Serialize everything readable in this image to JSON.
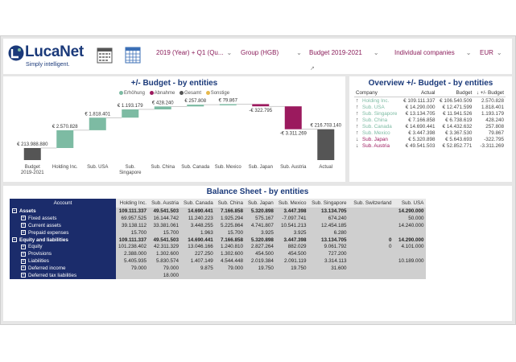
{
  "brand": {
    "name": "LucaNet",
    "tagline": "Simply intelligent."
  },
  "header": {
    "period": "2019 (Year) + Q1 (Qu...",
    "scenario": "Group (HGB)",
    "plan": "Budget 2019-2021",
    "companies": "Individual companies",
    "currency": "EUR"
  },
  "waterfall": {
    "title": "+/- Budget - by entities",
    "legend": [
      {
        "label": "Erhöhung",
        "color": "#7dbba3"
      },
      {
        "label": "Abnahme",
        "color": "#9b1a5e"
      },
      {
        "label": "Gesamt",
        "color": "#555555"
      },
      {
        "label": "Sonstige",
        "color": "#e6b84c"
      }
    ]
  },
  "chart_data": {
    "type": "bar",
    "title": "+/- Budget - by entities",
    "categories": [
      "Budget 2019-2021",
      "Holding Inc.",
      "Sub. USA",
      "Sub. Singapore",
      "Sub. China",
      "Sub. Canada",
      "Sub. Mexico",
      "Sub. Japan",
      "Sub. Austria",
      "Actual"
    ],
    "values": [
      213988880,
      2570828,
      1818401,
      1193179,
      428240,
      257808,
      79867,
      -322795,
      -3311269,
      216703140
    ],
    "labels": [
      "€ 213.988.880",
      "€ 2.570.828",
      "€ 1.818.401",
      "€ 1.193.179",
      "€ 428.240",
      "€ 257.808",
      "€ 79.867",
      "-€ 322.795",
      "-€ 3.311.269",
      "€ 216.703.140"
    ],
    "kinds": [
      "total",
      "inc",
      "inc",
      "inc",
      "inc",
      "inc",
      "inc",
      "dec",
      "dec",
      "total"
    ],
    "colors": {
      "inc": "#7dbba3",
      "dec": "#9b1a5e",
      "total": "#555555"
    }
  },
  "overview": {
    "title": "Overview +/- Budget - by entities",
    "columns": [
      "Company",
      "Actual",
      "Budget",
      "+/- Budget"
    ],
    "rows": [
      {
        "arrow": "↑",
        "company": "Holding Inc.",
        "actual": "€ 109.111.337",
        "budget": "€ 106.540.509",
        "diff": "2.570.828",
        "neg": false
      },
      {
        "arrow": "↑",
        "company": "Sub. USA",
        "actual": "€ 14.290.000",
        "budget": "€ 12.471.599",
        "diff": "1.818.401",
        "neg": false
      },
      {
        "arrow": "↑",
        "company": "Sub. Singapore",
        "actual": "€ 13.134.705",
        "budget": "€ 11.941.526",
        "diff": "1.193.179",
        "neg": false
      },
      {
        "arrow": "↑",
        "company": "Sub. China",
        "actual": "€ 7.166.858",
        "budget": "€ 6.738.619",
        "diff": "428.240",
        "neg": false
      },
      {
        "arrow": "↑",
        "company": "Sub. Canada",
        "actual": "€ 14.690.441",
        "budget": "€ 14.432.632",
        "diff": "257.808",
        "neg": false
      },
      {
        "arrow": "↑",
        "company": "Sub. Mexico",
        "actual": "€ 3.447.398",
        "budget": "€ 3.367.530",
        "diff": "79.867",
        "neg": false
      },
      {
        "arrow": "↓",
        "company": "Sub. Japan",
        "actual": "€ 5.320.898",
        "budget": "€ 5.643.693",
        "diff": "-322.795",
        "neg": true
      },
      {
        "arrow": "↓",
        "company": "Sub. Austria",
        "actual": "€ 49.541.503",
        "budget": "€ 52.852.771",
        "diff": "-3.311.269",
        "neg": true
      }
    ]
  },
  "balance": {
    "title": "Balance Sheet - by entities",
    "columns": [
      "Account",
      "Holding Inc.",
      "Sub. Austria",
      "Sub. Canada",
      "Sub. China",
      "Sub. Japan",
      "Sub. Mexico",
      "Sub. Singapore",
      "Sub. Switzerland",
      "Sub. USA"
    ],
    "rows": [
      {
        "pm": "−",
        "indent": false,
        "bold": true,
        "cells": [
          "Assets",
          "109.111.337",
          "49.541.503",
          "14.690.441",
          "7.166.858",
          "5.320.898",
          "3.447.398",
          "13.134.705",
          "",
          "14.290.000"
        ]
      },
      {
        "pm": "+",
        "indent": true,
        "bold": false,
        "cells": [
          "Fixed assets",
          "69.957.525",
          "16.144.742",
          "11.240.223",
          "1.925.294",
          "575.167",
          "-7.097.741",
          "674.240",
          "",
          "50.000"
        ]
      },
      {
        "pm": "+",
        "indent": true,
        "bold": false,
        "cells": [
          "Current assets",
          "39.138.112",
          "33.381.061",
          "3.448.255",
          "5.225.864",
          "4.741.807",
          "10.541.213",
          "12.454.185",
          "",
          "14.240.000"
        ]
      },
      {
        "pm": "+",
        "indent": true,
        "bold": false,
        "cells": [
          "Prepaid expenses",
          "15.700",
          "15.700",
          "1.963",
          "15.700",
          "3.925",
          "3.925",
          "6.280",
          "",
          ""
        ]
      },
      {
        "pm": "−",
        "indent": false,
        "bold": true,
        "cells": [
          "Equity and liabilities",
          "109.111.337",
          "49.541.503",
          "14.690.441",
          "7.166.858",
          "5.320.898",
          "3.447.398",
          "13.134.705",
          "0",
          "14.290.000"
        ]
      },
      {
        "pm": "+",
        "indent": true,
        "bold": false,
        "cells": [
          "Equity",
          "101.238.402",
          "42.311.329",
          "13.046.166",
          "1.240.810",
          "2.827.264",
          "882.029",
          "9.061.792",
          "0",
          "4.101.000"
        ]
      },
      {
        "pm": "+",
        "indent": true,
        "bold": false,
        "cells": [
          "Provisions",
          "2.388.000",
          "1.302.600",
          "227.250",
          "1.302.600",
          "454.500",
          "454.500",
          "727.200",
          "",
          ""
        ]
      },
      {
        "pm": "+",
        "indent": true,
        "bold": false,
        "cells": [
          "Liabilities",
          "5.405.935",
          "5.830.574",
          "1.407.149",
          "4.544.448",
          "2.019.384",
          "2.091.119",
          "3.314.113",
          "",
          "10.189.000"
        ]
      },
      {
        "pm": "+",
        "indent": true,
        "bold": false,
        "cells": [
          "Deferred income",
          "79.000",
          "79.000",
          "9.875",
          "79.000",
          "19.750",
          "19.750",
          "31.600",
          "",
          ""
        ]
      },
      {
        "pm": "+",
        "indent": true,
        "bold": false,
        "cells": [
          "Deferred tax liabilities",
          "",
          "18.000",
          "",
          "",
          "",
          "",
          "",
          "",
          ""
        ]
      }
    ]
  }
}
